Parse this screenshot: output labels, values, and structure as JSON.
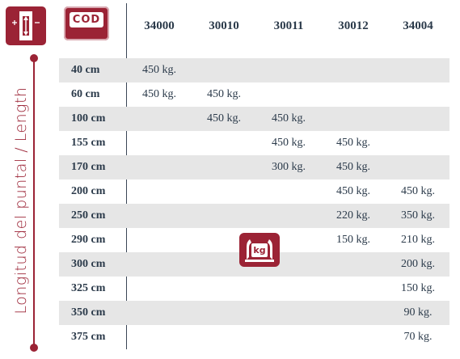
{
  "axis_title": "Longitud del puntal / Length",
  "cod_label": "COD",
  "kg_label": "kg",
  "columns": [
    "34000",
    "30010",
    "30011",
    "30012",
    "34004"
  ],
  "rows": [
    {
      "length": "40 cm",
      "values": [
        "450 kg.",
        "",
        "",
        "",
        ""
      ]
    },
    {
      "length": "60 cm",
      "values": [
        "450 kg.",
        "450 kg.",
        "",
        "",
        ""
      ]
    },
    {
      "length": "100 cm",
      "values": [
        "",
        "450 kg.",
        "450 kg.",
        "",
        ""
      ]
    },
    {
      "length": "155 cm",
      "values": [
        "",
        "",
        "450 kg.",
        "450 kg.",
        ""
      ]
    },
    {
      "length": "170 cm",
      "values": [
        "",
        "",
        "300 kg.",
        "450 kg.",
        ""
      ]
    },
    {
      "length": "200 cm",
      "values": [
        "",
        "",
        "",
        "450 kg.",
        "450 kg."
      ]
    },
    {
      "length": "250 cm",
      "values": [
        "",
        "",
        "",
        "220 kg.",
        "350 kg."
      ]
    },
    {
      "length": "290 cm",
      "values": [
        "",
        "",
        "",
        "150 kg.",
        "210 kg."
      ]
    },
    {
      "length": "300 cm",
      "values": [
        "",
        "",
        "",
        "",
        "200 kg."
      ]
    },
    {
      "length": "325 cm",
      "values": [
        "",
        "",
        "",
        "",
        "150 kg."
      ]
    },
    {
      "length": "350 cm",
      "values": [
        "",
        "",
        "",
        "",
        "90 kg."
      ]
    },
    {
      "length": "375 cm",
      "values": [
        "",
        "",
        "",
        "",
        "70 kg."
      ]
    }
  ],
  "icons": {
    "length_icon": "length-measure-icon",
    "load_icon": "load-capacity-kg-icon"
  },
  "colors": {
    "accent": "#9b2335",
    "row_shade": "#e6e6e6",
    "text": "#2b3a4a"
  }
}
